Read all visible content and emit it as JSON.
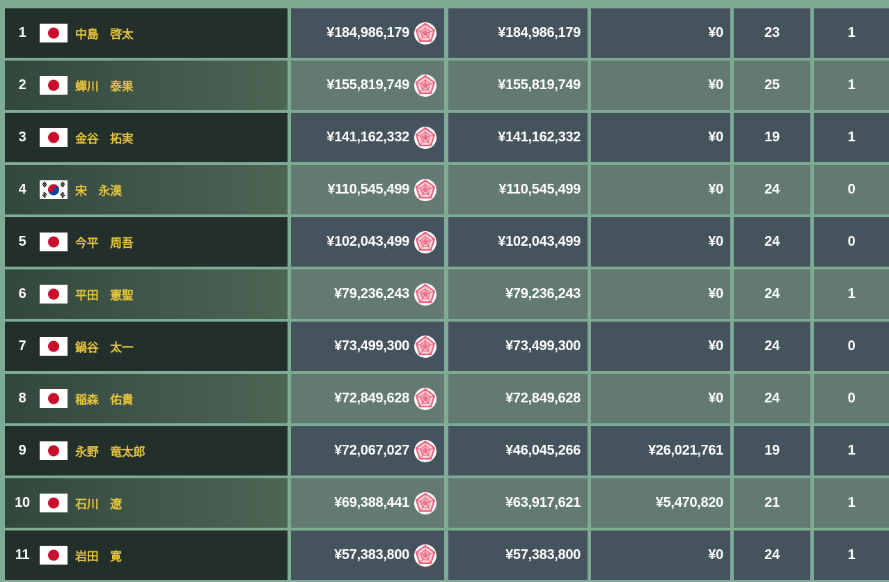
{
  "table": {
    "rows": [
      {
        "rank": 1,
        "flag": "jp",
        "name": "中島　啓太",
        "total": "¥184,986,179",
        "domestic": "¥184,986,179",
        "overseas": "¥0",
        "entries": 23,
        "wins": 1
      },
      {
        "rank": 2,
        "flag": "jp",
        "name": "蟬川　泰果",
        "total": "¥155,819,749",
        "domestic": "¥155,819,749",
        "overseas": "¥0",
        "entries": 25,
        "wins": 1
      },
      {
        "rank": 3,
        "flag": "jp",
        "name": "金谷　拓実",
        "total": "¥141,162,332",
        "domestic": "¥141,162,332",
        "overseas": "¥0",
        "entries": 19,
        "wins": 1
      },
      {
        "rank": 4,
        "flag": "kr",
        "name": "宋　永漢",
        "total": "¥110,545,499",
        "domestic": "¥110,545,499",
        "overseas": "¥0",
        "entries": 24,
        "wins": 0
      },
      {
        "rank": 5,
        "flag": "jp",
        "name": "今平　周吾",
        "total": "¥102,043,499",
        "domestic": "¥102,043,499",
        "overseas": "¥0",
        "entries": 24,
        "wins": 0
      },
      {
        "rank": 6,
        "flag": "jp",
        "name": "平田　憲聖",
        "total": "¥79,236,243",
        "domestic": "¥79,236,243",
        "overseas": "¥0",
        "entries": 24,
        "wins": 1
      },
      {
        "rank": 7,
        "flag": "jp",
        "name": "鍋谷　太一",
        "total": "¥73,499,300",
        "domestic": "¥73,499,300",
        "overseas": "¥0",
        "entries": 24,
        "wins": 0
      },
      {
        "rank": 8,
        "flag": "jp",
        "name": "稲森　佑貴",
        "total": "¥72,849,628",
        "domestic": "¥72,849,628",
        "overseas": "¥0",
        "entries": 24,
        "wins": 0
      },
      {
        "rank": 9,
        "flag": "jp",
        "name": "永野　竜太郎",
        "total": "¥72,067,027",
        "domestic": "¥46,045,266",
        "overseas": "¥26,021,761",
        "entries": 19,
        "wins": 1
      },
      {
        "rank": 10,
        "flag": "jp",
        "name": "石川　遼",
        "total": "¥69,388,441",
        "domestic": "¥63,917,621",
        "overseas": "¥5,470,820",
        "entries": 21,
        "wins": 1
      },
      {
        "rank": 11,
        "flag": "jp",
        "name": "岩田　寛",
        "total": "¥57,383,800",
        "domestic": "¥57,383,800",
        "overseas": "¥0",
        "entries": 24,
        "wins": 1
      }
    ]
  }
}
